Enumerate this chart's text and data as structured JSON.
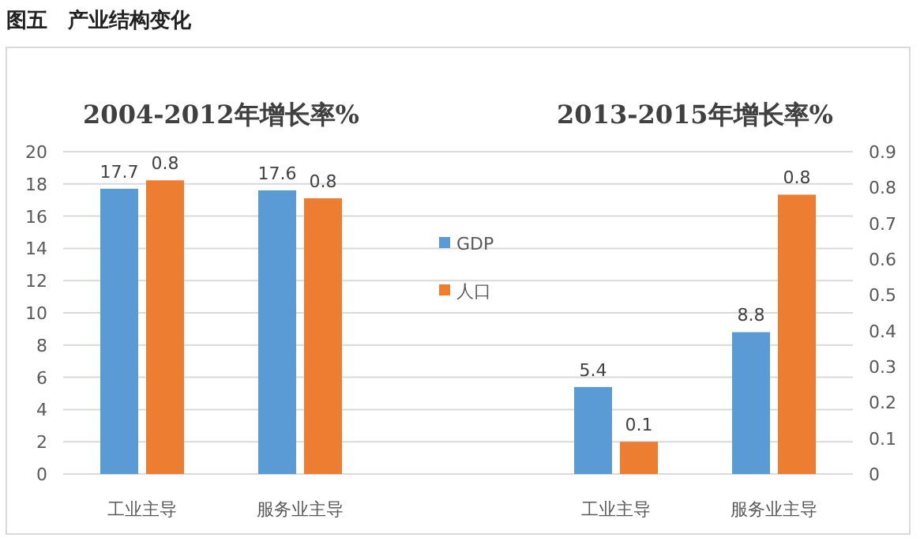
{
  "chart_data": {
    "type": "bar",
    "title": "图五　产业结构变化",
    "annotations": [
      "2004-2012年增长率%",
      "2013-2015年增长率%"
    ],
    "categories": [
      "工业主导",
      "服务业主导",
      null,
      "工业主导",
      "服务业主导"
    ],
    "series": [
      {
        "name": "GDP",
        "color": "#5b9bd5",
        "values": [
          17.7,
          17.6,
          null,
          5.4,
          8.8
        ],
        "value_labels": [
          "17.7",
          "17.6",
          null,
          "5.4",
          "8.8"
        ]
      },
      {
        "name": "人口",
        "color": "#ed7d31",
        "axis": "y2",
        "values": [
          0.82,
          0.77,
          null,
          0.09,
          0.78
        ],
        "value_labels": [
          "0.8",
          "0.8",
          null,
          "0.1",
          "0.8"
        ]
      }
    ],
    "ylim": [
      0,
      20
    ],
    "yticks": [
      0,
      2,
      4,
      6,
      8,
      10,
      12,
      14,
      16,
      18,
      20
    ],
    "y2lim": [
      0,
      0.9
    ],
    "y2ticks": [
      0,
      0.1,
      0.2,
      0.3,
      0.4,
      0.5,
      0.6,
      0.7,
      0.8,
      0.9
    ],
    "grid": "y",
    "legend": "center"
  }
}
